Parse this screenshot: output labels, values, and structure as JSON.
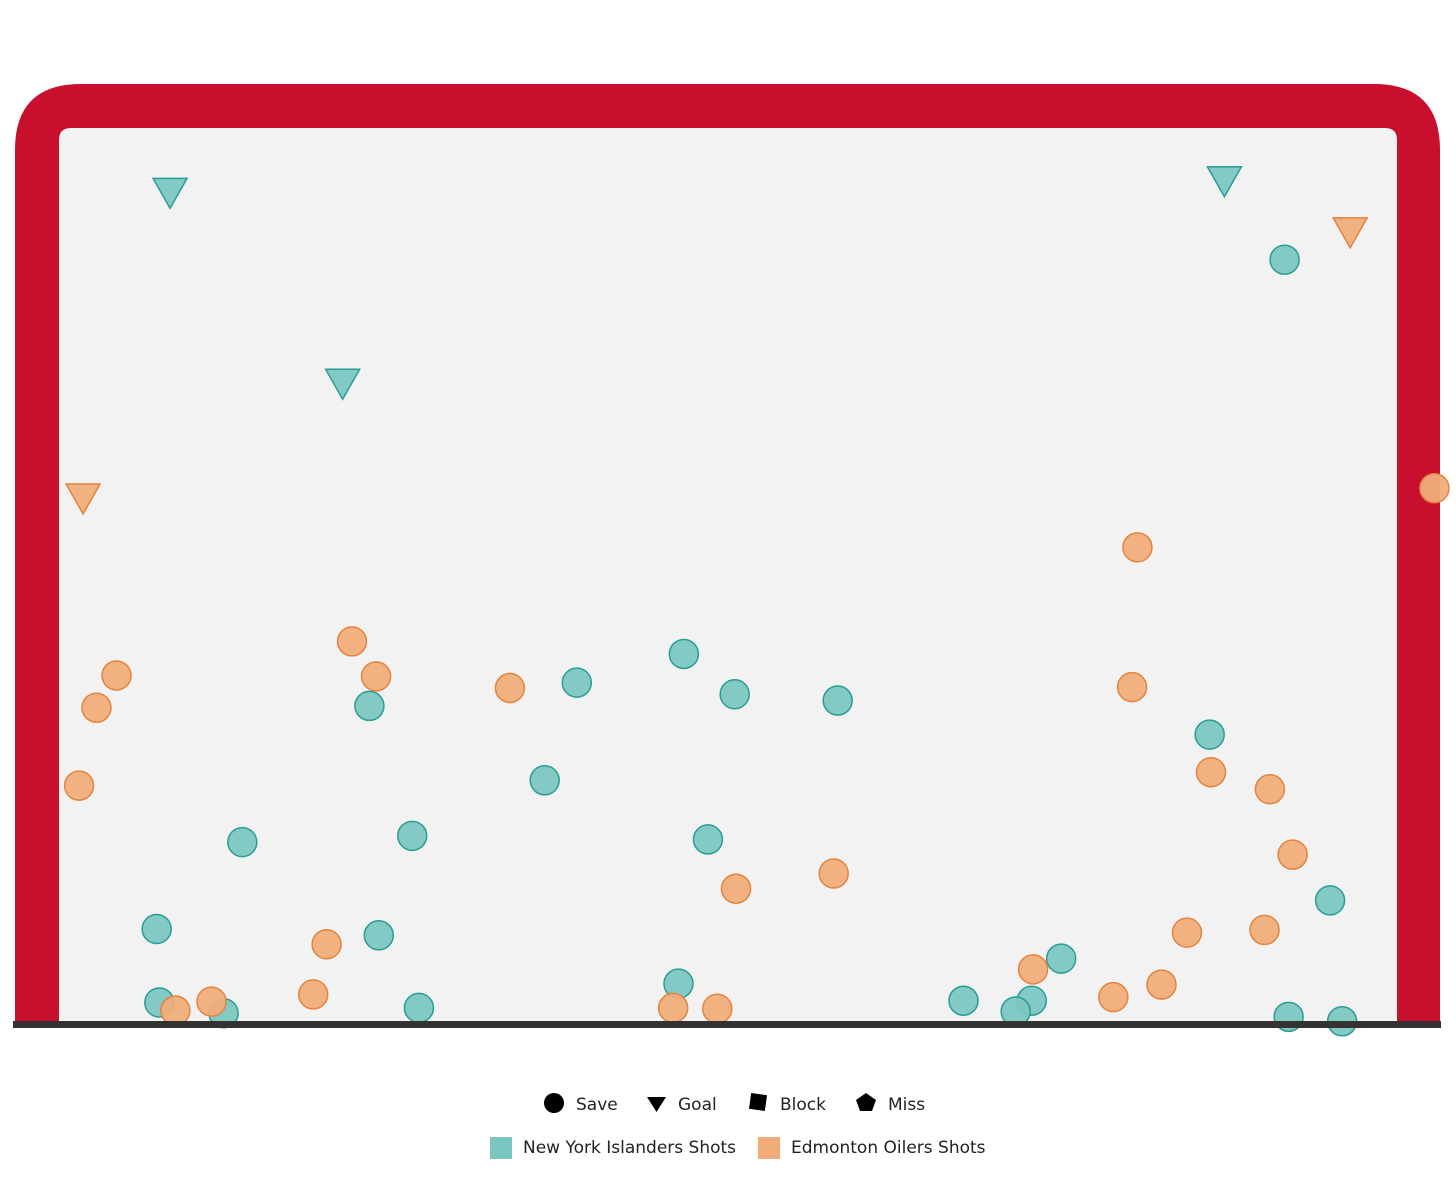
{
  "chart_data": {
    "type": "scatter",
    "title": "",
    "xlabel": "",
    "ylabel": "",
    "xlim": [
      0,
      100
    ],
    "ylim": [
      0,
      100
    ],
    "grid": false,
    "legend_position": "bottom-center",
    "colors": {
      "islanders_fill": "#7cc6c1",
      "islanders_stroke": "#2a9d95",
      "oilers_fill": "#f0ad7a",
      "oilers_stroke": "#e3843f",
      "frame": "#c8102e",
      "goal_line": "#333333",
      "background": "#f2f2f2"
    },
    "shape_legend": [
      {
        "label": "Save",
        "shape": "circle"
      },
      {
        "label": "Goal",
        "shape": "triangle-down"
      },
      {
        "label": "Block",
        "shape": "square"
      },
      {
        "label": "Miss",
        "shape": "pentagon"
      }
    ],
    "series": [
      {
        "name": "New York Islanders Shots",
        "points": [
          {
            "x": 8.3,
            "y": 92.7,
            "result": "Goal"
          },
          {
            "x": 21.2,
            "y": 71.4,
            "result": "Goal"
          },
          {
            "x": 87.1,
            "y": 94.0,
            "result": "Goal"
          },
          {
            "x": 91.6,
            "y": 85.3,
            "result": "Save"
          },
          {
            "x": 46.7,
            "y": 41.3,
            "result": "Save"
          },
          {
            "x": 38.7,
            "y": 38.1,
            "result": "Save"
          },
          {
            "x": 50.5,
            "y": 36.8,
            "result": "Save"
          },
          {
            "x": 58.2,
            "y": 36.1,
            "result": "Save"
          },
          {
            "x": 23.2,
            "y": 35.5,
            "result": "Save"
          },
          {
            "x": 86.0,
            "y": 32.3,
            "result": "Save"
          },
          {
            "x": 36.3,
            "y": 27.2,
            "result": "Save"
          },
          {
            "x": 26.4,
            "y": 21.0,
            "result": "Save"
          },
          {
            "x": 48.5,
            "y": 20.6,
            "result": "Save"
          },
          {
            "x": 13.7,
            "y": 20.3,
            "result": "Save"
          },
          {
            "x": 7.3,
            "y": 10.6,
            "result": "Save"
          },
          {
            "x": 23.9,
            "y": 9.9,
            "result": "Save"
          },
          {
            "x": 95.0,
            "y": 13.8,
            "result": "Save"
          },
          {
            "x": 74.9,
            "y": 7.3,
            "result": "Save"
          },
          {
            "x": 46.3,
            "y": 4.5,
            "result": "Save"
          },
          {
            "x": 7.5,
            "y": 2.4,
            "result": "Save"
          },
          {
            "x": 12.3,
            "y": 1.2,
            "result": "Save"
          },
          {
            "x": 26.9,
            "y": 1.8,
            "result": "Save"
          },
          {
            "x": 67.6,
            "y": 2.6,
            "result": "Save"
          },
          {
            "x": 72.7,
            "y": 2.6,
            "result": "Save"
          },
          {
            "x": 71.5,
            "y": 1.4,
            "result": "Save"
          },
          {
            "x": 91.9,
            "y": 0.8,
            "result": "Save"
          },
          {
            "x": 95.9,
            "y": 0.3,
            "result": "Save"
          }
        ]
      },
      {
        "name": "Edmonton Oilers Shots",
        "points": [
          {
            "x": 1.8,
            "y": 58.6,
            "result": "Goal"
          },
          {
            "x": 96.5,
            "y": 88.3,
            "result": "Goal"
          },
          {
            "x": 102.8,
            "y": 59.8,
            "result": "Save"
          },
          {
            "x": 80.6,
            "y": 53.2,
            "result": "Save"
          },
          {
            "x": 21.9,
            "y": 42.7,
            "result": "Save"
          },
          {
            "x": 4.3,
            "y": 38.9,
            "result": "Save"
          },
          {
            "x": 23.7,
            "y": 38.8,
            "result": "Save"
          },
          {
            "x": 33.7,
            "y": 37.5,
            "result": "Save"
          },
          {
            "x": 80.2,
            "y": 37.6,
            "result": "Save"
          },
          {
            "x": 2.8,
            "y": 35.3,
            "result": "Save"
          },
          {
            "x": 1.5,
            "y": 26.6,
            "result": "Save"
          },
          {
            "x": 86.1,
            "y": 28.1,
            "result": "Save"
          },
          {
            "x": 90.5,
            "y": 26.2,
            "result": "Save"
          },
          {
            "x": 92.2,
            "y": 18.9,
            "result": "Save"
          },
          {
            "x": 57.9,
            "y": 16.8,
            "result": "Save"
          },
          {
            "x": 50.6,
            "y": 15.1,
            "result": "Save"
          },
          {
            "x": 84.3,
            "y": 10.2,
            "result": "Save"
          },
          {
            "x": 90.1,
            "y": 10.5,
            "result": "Save"
          },
          {
            "x": 20.0,
            "y": 8.9,
            "result": "Save"
          },
          {
            "x": 72.8,
            "y": 6.1,
            "result": "Save"
          },
          {
            "x": 82.4,
            "y": 4.4,
            "result": "Save"
          },
          {
            "x": 78.8,
            "y": 3.0,
            "result": "Save"
          },
          {
            "x": 19.0,
            "y": 3.3,
            "result": "Save"
          },
          {
            "x": 11.4,
            "y": 2.5,
            "result": "Save"
          },
          {
            "x": 8.7,
            "y": 1.5,
            "result": "Save"
          },
          {
            "x": 45.9,
            "y": 1.8,
            "result": "Save"
          },
          {
            "x": 49.2,
            "y": 1.7,
            "result": "Save"
          }
        ]
      }
    ]
  }
}
